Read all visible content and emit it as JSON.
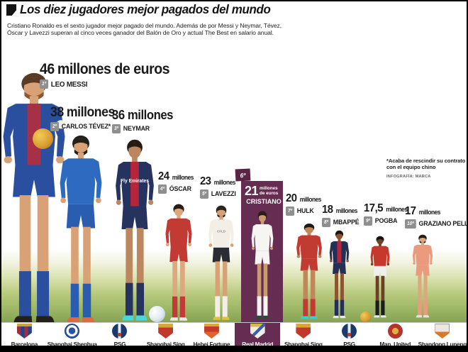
{
  "header": {
    "title": "Los diez jugadores mejor pagados del mundo",
    "subtitle_line1": "Cristiano Ronaldo es el sexto jugador mejor pagado del mundo. Además de por Messi y Neymar, Tévez,",
    "subtitle_line2": "Óscar y Lavezzi superan al cinco veces ganador del Balón de Oro y actual The Best en salario anual."
  },
  "note": {
    "line1": "*Acaba de rescindir su contrato",
    "line2": "con el equipo chino",
    "credit": "INFOGRAFÍA: MARCA"
  },
  "players": [
    {
      "rank": "1º",
      "salary": "46",
      "suffix": "millones de euros",
      "name": "LEO MESSI",
      "club": "Barcelona",
      "kit": {
        "skin": "#d9a276",
        "hair": "#5a3c26",
        "beard": "#8a5a36",
        "shirt": "#2a4f9e",
        "stripe": "#a63045",
        "shorts": "#2a4f9e",
        "socks": "#2a4f9e",
        "shoes": "#26201a",
        "patch": true
      }
    },
    {
      "rank": "2º",
      "salary": "38",
      "suffix": "millones",
      "name": "CARLOS TÉVEZ*",
      "club": "Shanghai Shenhua",
      "kit": {
        "skin": "#d9a276",
        "hair": "#26201a",
        "beard": "#26201a",
        "shirt": "#2e6bc0",
        "shorts": "#2a5cb0",
        "socks": "#2a5cb0",
        "shoes": "#e06a3c"
      }
    },
    {
      "rank": "3º",
      "salary": "36",
      "suffix": "millones",
      "name": "NEYMAR",
      "club": "PSG",
      "kit": {
        "skin": "#bc865e",
        "hair": "#241c14",
        "shirt": "#25335e",
        "stripe": "#b5253c",
        "shorts": "#25335e",
        "socks": "#25335e",
        "shoes": "#49d8d8",
        "text": "Fly Emirates",
        "text_color": "#ffffff"
      }
    },
    {
      "rank": "4º",
      "salary": "24",
      "suffix": "millones",
      "name": "ÓSCAR",
      "club": "Shanghai Sipg",
      "kit": {
        "skin": "#dca87e",
        "hair": "#241c14",
        "shirt": "#c13a33",
        "shorts": "#c13a33",
        "socks": "#c13a33",
        "shoes": "#e8e8e8"
      }
    },
    {
      "rank": "5º",
      "salary": "23",
      "suffix": "millones",
      "name": "LAVEZZI",
      "club": "Hebei Fortune",
      "kit": {
        "skin": "#d9a276",
        "hair": "#2b241c",
        "beard": "#2b241c",
        "shirt": "#f3efe7",
        "shorts": "#2b2b33",
        "socks": "#f3efe7",
        "shoes": "#e0c23a",
        "text": "CFLD",
        "text_color": "#8a8a8a"
      }
    },
    {
      "rank": "6º",
      "salary": "21",
      "suffix": "millones de euros",
      "name": "CRISTIANO",
      "club": "Real Madrid",
      "kit": {
        "skin": "#c89a6e",
        "hair": "#241e18",
        "shirt": "#f7f5f1",
        "shorts": "#f7f5f1",
        "socks": "#f7f5f1",
        "shoes": "#2a4a42"
      }
    },
    {
      "rank": "7º",
      "salary": "20",
      "suffix": "millones",
      "name": "HULK",
      "club": "Shanghai Sipg",
      "kit": {
        "skin": "#c08858",
        "hair": "#1e1813",
        "shirt": "#c23b33",
        "shorts": "#c23b33",
        "socks": "#c23b33",
        "shoes": "#3ecfcf"
      }
    },
    {
      "rank": "8º",
      "salary": "18",
      "suffix": "millones",
      "name": "MBAPPÉ",
      "club": "PSG",
      "kit": {
        "skin": "#8a5531",
        "hair": "#1c140e",
        "shirt": "#252f56",
        "stripe": "#b5253c",
        "shorts": "#252f56",
        "socks": "#252f56",
        "shoes": "#e8e8e8"
      }
    },
    {
      "rank": "9º",
      "salary": "17,5",
      "suffix": "millones",
      "name": "POGBA",
      "club": "Man. United",
      "kit": {
        "skin": "#6b4226",
        "hair": "#16100c",
        "shirt": "#c8372d",
        "shorts": "#efefef",
        "socks": "#1d1d1d",
        "shoes": "#e8e8e8"
      }
    },
    {
      "rank": "10º",
      "salary": "17",
      "suffix": "millones",
      "name": "GRAZIANO PELLÉ",
      "club": "Shandong Luneng",
      "kit": {
        "skin": "#dca87e",
        "hair": "#241c14",
        "beard": "#241c14",
        "shirt": "#eb9b7d",
        "shorts": "#eb9b7d",
        "socks": "#eb9b7d",
        "shoes": "#e8e4dc"
      }
    }
  ],
  "footer_clubs": [
    "Barcelona",
    "Shanghai Shenhua",
    "PSG",
    "Shanghai Sipg",
    "Hebei Fortune",
    "Real Madrid",
    "Shanghai Sipg",
    "PSG",
    "Man. United",
    "Shandong Luneng"
  ],
  "colors": {
    "accent_purple": "#672c52",
    "accent_purple_dark": "#5c2344",
    "badge_gray": "#8f8f8f",
    "grass_green": "#8fab58",
    "text_black": "#1a1a1a"
  },
  "chart_data": {
    "type": "bar",
    "title": "Los diez jugadores mejor pagados del mundo",
    "unit": "millones de euros (salario anual)",
    "categories": [
      "Leo Messi",
      "Carlos Tévez",
      "Neymar",
      "Óscar",
      "Lavezzi",
      "Cristiano Ronaldo",
      "Hulk",
      "Mbappé",
      "Pogba",
      "Graziano Pellé"
    ],
    "values": [
      46,
      38,
      36,
      24,
      23,
      21,
      20,
      18,
      17.5,
      17
    ],
    "clubs": [
      "Barcelona",
      "Shanghai Shenhua",
      "PSG",
      "Shanghai Sipg",
      "Hebei Fortune",
      "Real Madrid",
      "Shanghai Sipg",
      "PSG",
      "Man. United",
      "Shandong Luneng"
    ],
    "highlighted_category": "Cristiano Ronaldo",
    "annotation": "*Acaba de rescindir su contrato con el equipo chino"
  }
}
